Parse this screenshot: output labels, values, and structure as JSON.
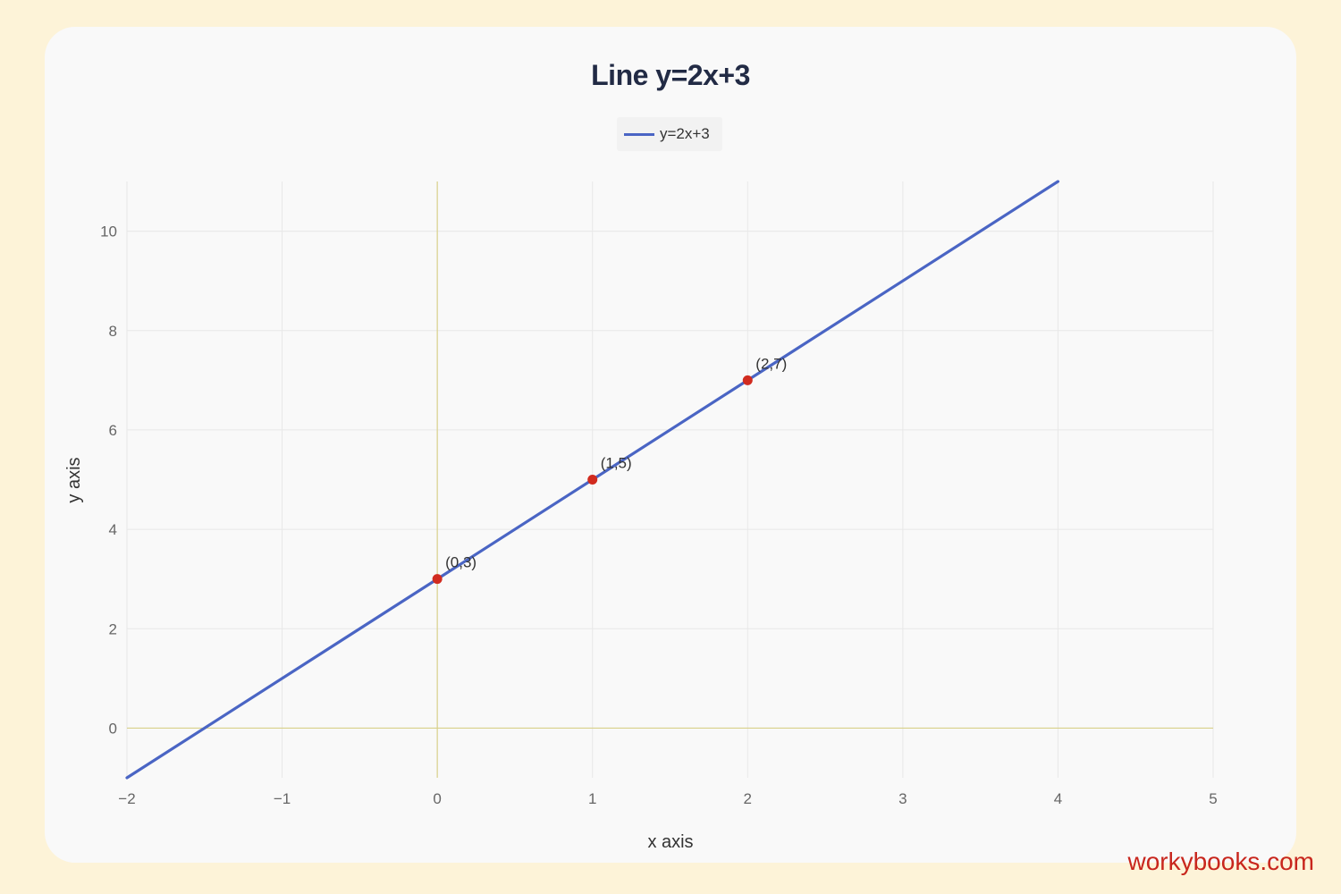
{
  "chart_data": {
    "type": "line",
    "title": "Line y=2x+3",
    "xlabel": "x axis",
    "ylabel": "y axis",
    "xlim": [
      -2,
      5
    ],
    "ylim": [
      -1,
      11
    ],
    "x_ticks": [
      -2,
      -1,
      0,
      1,
      2,
      3,
      4,
      5
    ],
    "y_ticks": [
      0,
      2,
      4,
      6,
      8,
      10
    ],
    "grid": true,
    "legend_position": "top-center",
    "series": [
      {
        "name": "y=2x+3",
        "color": "#4a65c4",
        "x": [
          -2,
          4
        ],
        "y": [
          -1,
          11
        ]
      }
    ],
    "points": [
      {
        "x": 0,
        "y": 3,
        "label": "(0,3)"
      },
      {
        "x": 1,
        "y": 5,
        "label": "(1,5)"
      },
      {
        "x": 2,
        "y": 7,
        "label": "(2,7)"
      }
    ],
    "point_color": "#d12b1f",
    "zero_line_color": "#d8d08a"
  },
  "watermark": "workybooks.com"
}
